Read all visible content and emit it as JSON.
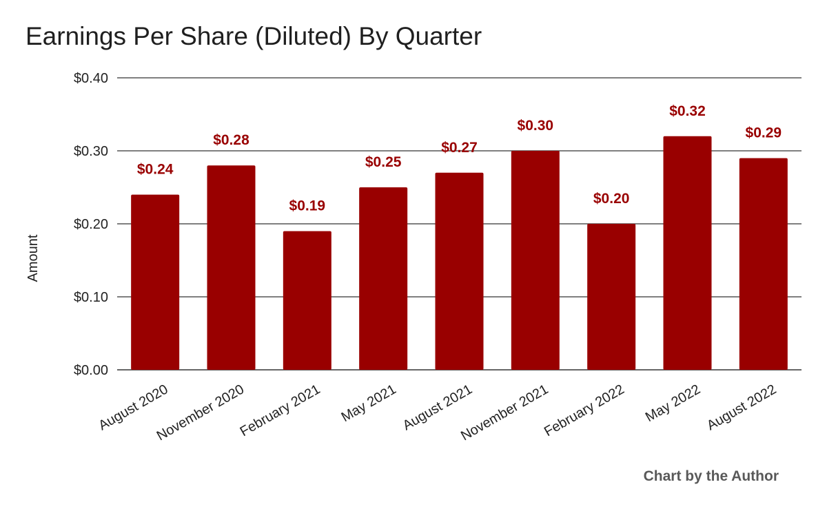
{
  "chart_data": {
    "type": "bar",
    "title": "Earnings Per Share (Diluted) By Quarter",
    "xlabel": "",
    "ylabel": "Amount",
    "categories": [
      "August 2020",
      "November 2020",
      "February 2021",
      "May 2021",
      "August 2021",
      "November 2021",
      "February 2022",
      "May 2022",
      "August 2022"
    ],
    "values": [
      0.24,
      0.28,
      0.19,
      0.25,
      0.27,
      0.3,
      0.2,
      0.32,
      0.29
    ],
    "data_labels": [
      "$0.24",
      "$0.28",
      "$0.19",
      "$0.25",
      "$0.27",
      "$0.30",
      "$0.20",
      "$0.32",
      "$0.29"
    ],
    "y_ticks": [
      0,
      0.1,
      0.2,
      0.3,
      0.4
    ],
    "y_tick_labels": [
      "$0.00",
      "$0.10",
      "$0.20",
      "$0.30",
      "$0.40"
    ],
    "ylim": [
      0,
      0.4
    ],
    "grid": true,
    "legend": "none",
    "bar_color": "#990000",
    "data_label_color": "#990000",
    "gridline_color": "#333333"
  },
  "credit": "Chart by the Author"
}
